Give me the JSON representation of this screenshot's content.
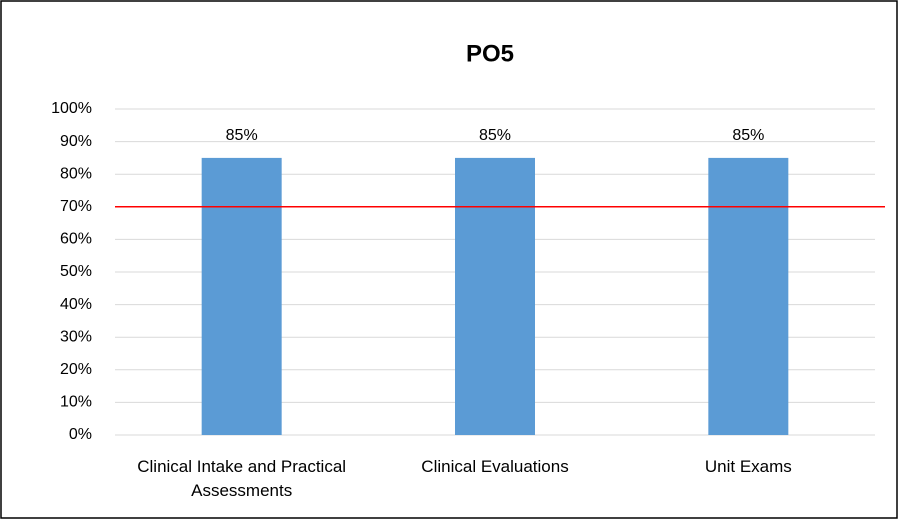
{
  "chart_data": {
    "type": "bar",
    "title": "PO5",
    "categories": [
      "Clinical Intake and Practical Assessments",
      "Clinical Evaluations",
      "Unit Exams"
    ],
    "values": [
      85,
      85,
      85
    ],
    "value_labels": [
      "85%",
      "85%",
      "85%"
    ],
    "color": "#5b9bd5",
    "ylim": [
      0,
      100
    ],
    "yticks": [
      {
        "value": 0,
        "label": "0%"
      },
      {
        "value": 10,
        "label": "10%"
      },
      {
        "value": 20,
        "label": "20%"
      },
      {
        "value": 30,
        "label": "30%"
      },
      {
        "value": 40,
        "label": "40%"
      },
      {
        "value": 50,
        "label": "50%"
      },
      {
        "value": 60,
        "label": "60%"
      },
      {
        "value": 70,
        "label": "70%"
      },
      {
        "value": 80,
        "label": "80%"
      },
      {
        "value": 90,
        "label": "90%"
      },
      {
        "value": 100,
        "label": "100%"
      }
    ],
    "grid": true,
    "reference_line": {
      "value": 70,
      "color": "#ff0000"
    }
  }
}
